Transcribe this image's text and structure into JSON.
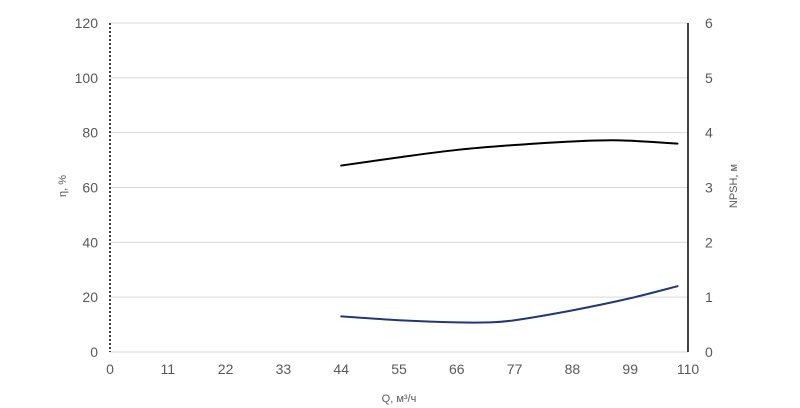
{
  "chart_data": {
    "type": "line",
    "xlabel": "Q, м³/ч",
    "ylabel_left": "η, %",
    "ylabel_right": "NPSH, м",
    "xlim": [
      0,
      110
    ],
    "ylim_left": [
      0,
      120
    ],
    "ylim_right": [
      0,
      6
    ],
    "x_ticks": [
      0,
      11,
      22,
      33,
      44,
      55,
      66,
      77,
      88,
      99,
      110
    ],
    "y_ticks_left": [
      0,
      20,
      40,
      60,
      80,
      100,
      120
    ],
    "y_ticks_right": [
      0,
      1,
      2,
      3,
      4,
      5,
      6
    ],
    "grid": "horizontal",
    "legend": "none",
    "series": [
      {
        "axis": "left",
        "color": "#000000",
        "x": [
          44,
          55,
          66,
          77,
          88,
          97,
          108
        ],
        "y": [
          68,
          71,
          73.7,
          75.5,
          76.8,
          77.2,
          76
        ]
      },
      {
        "axis": "right",
        "color": "#1f3a73",
        "x": [
          44,
          55,
          66,
          72,
          77,
          88,
          99,
          108
        ],
        "y": [
          0.65,
          0.58,
          0.54,
          0.54,
          0.58,
          0.76,
          0.98,
          1.2
        ]
      }
    ]
  }
}
